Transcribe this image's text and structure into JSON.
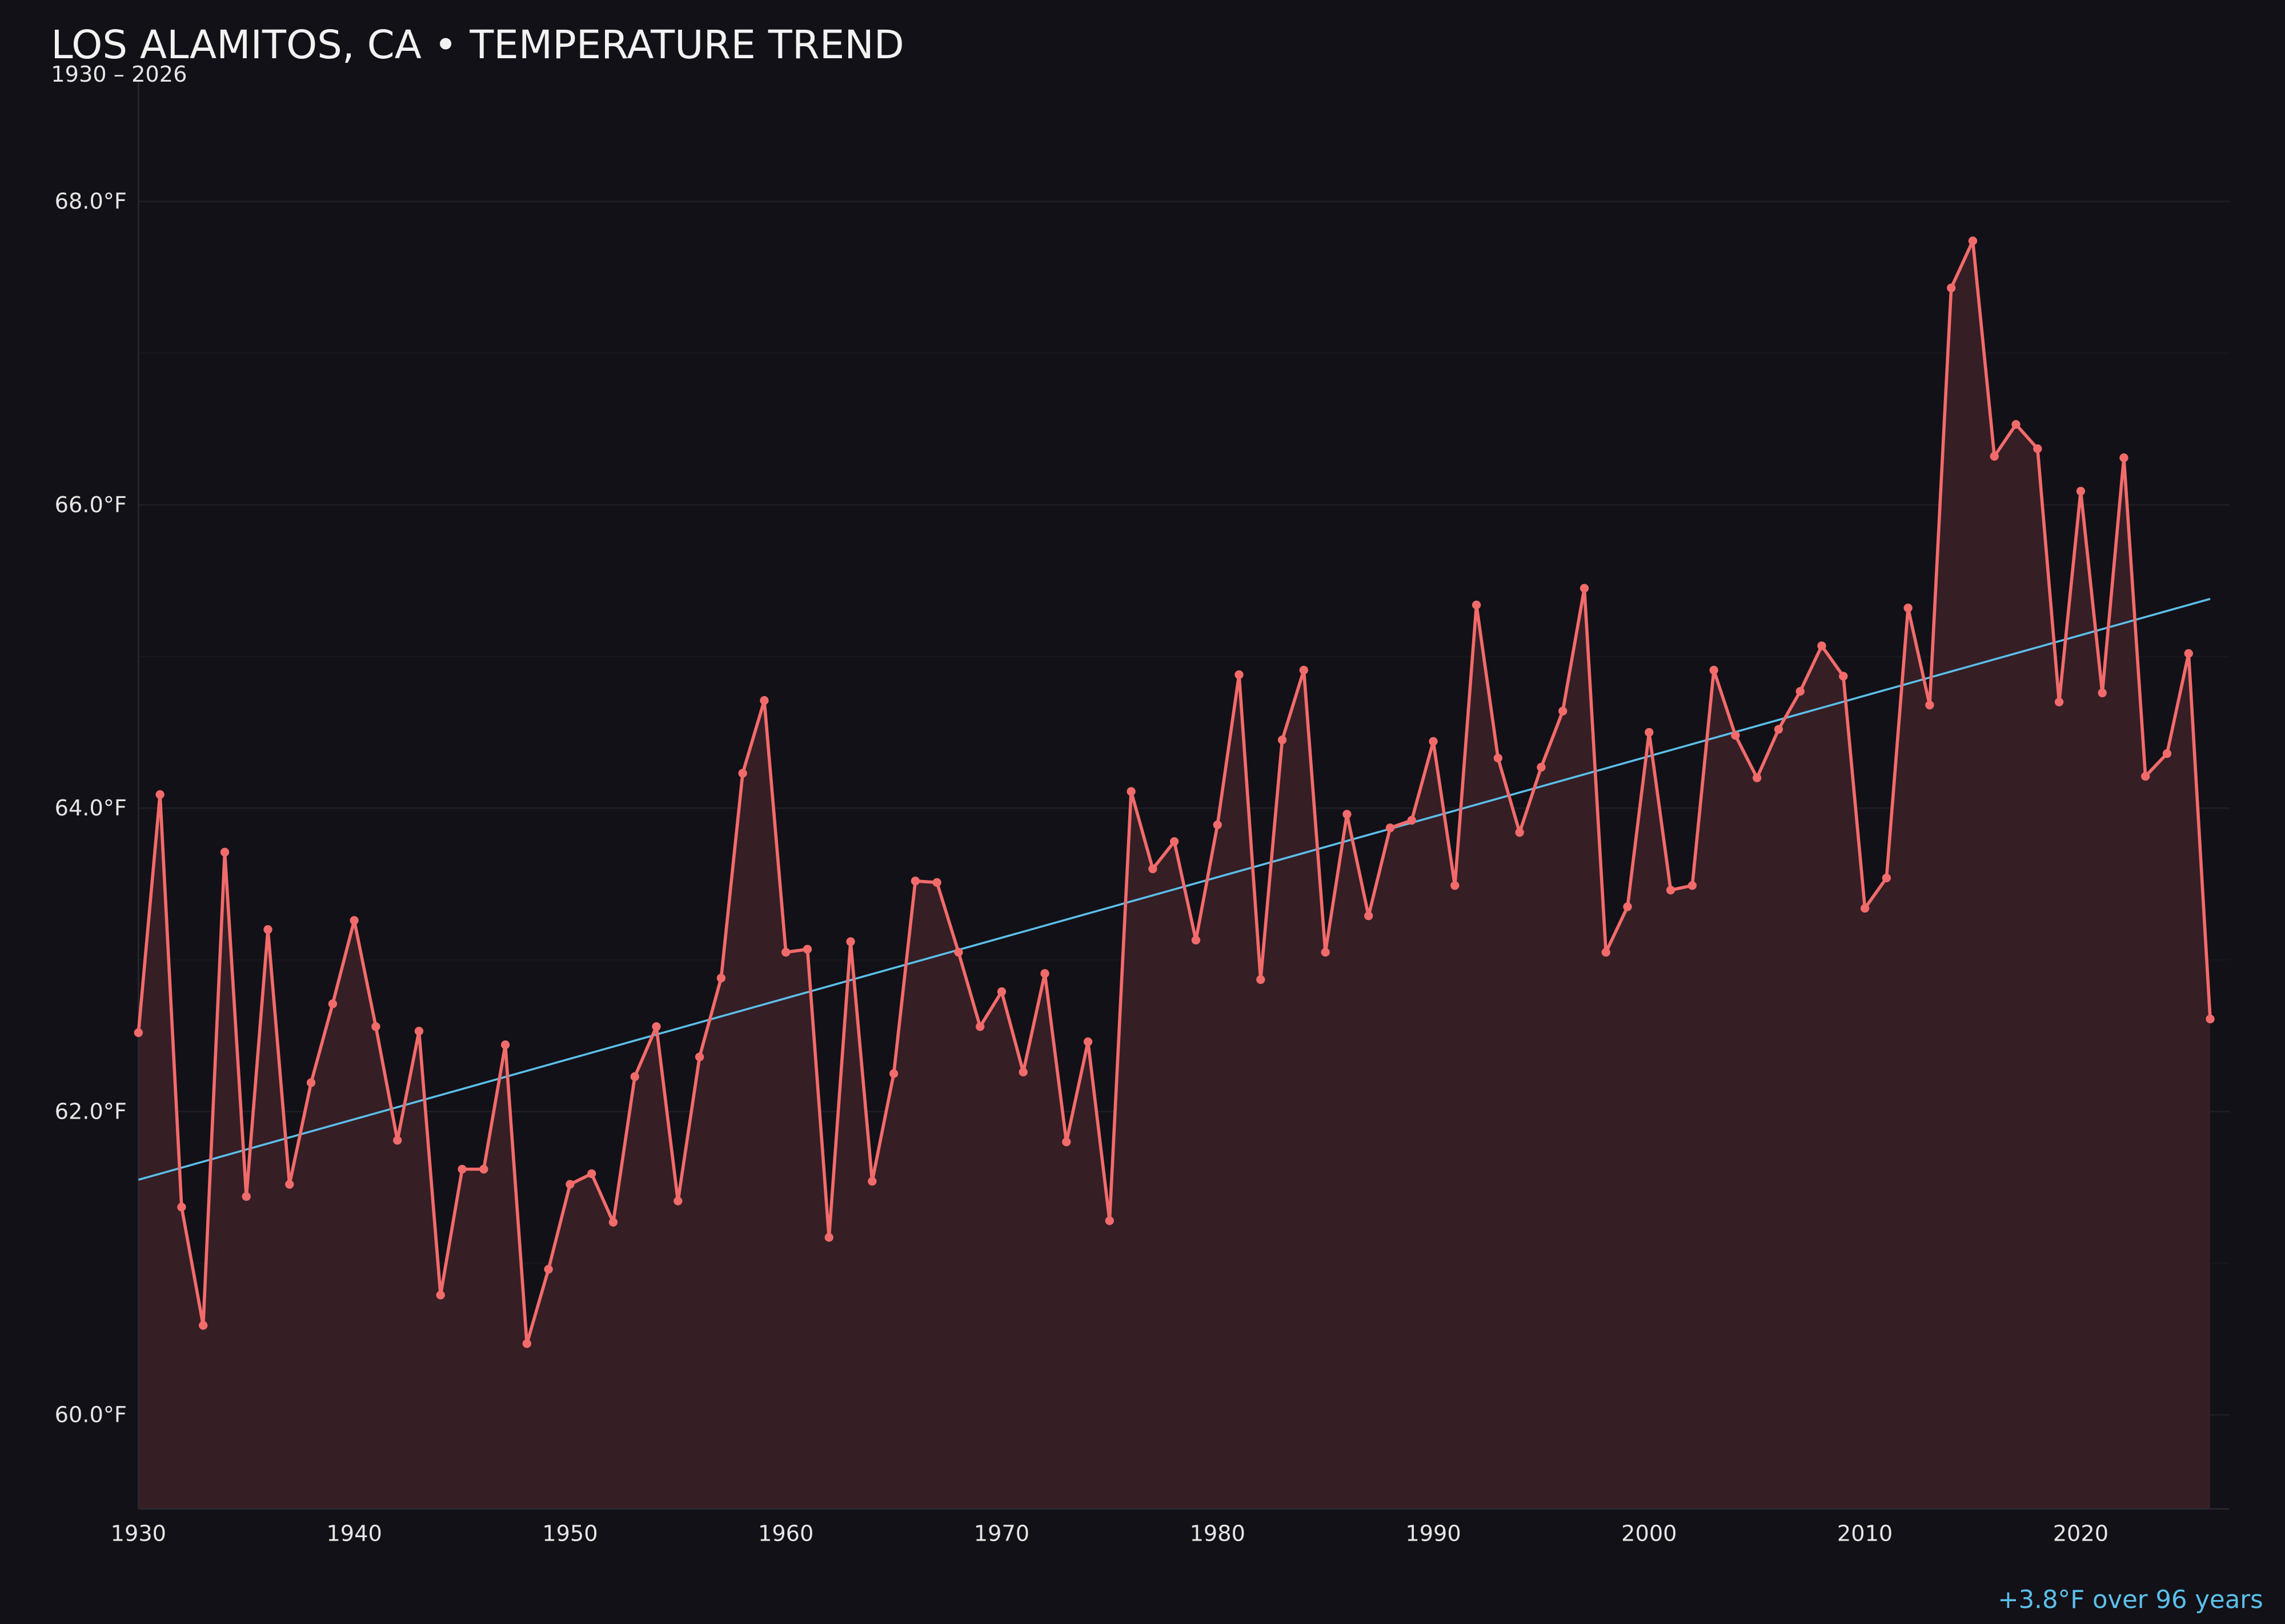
{
  "chart_data": {
    "type": "line",
    "title": "LOS ALAMITOS, CA • TEMPERATURE TREND",
    "subtitle": "1930 – 2026",
    "annotation": "+3.8°F over 96 years",
    "xlabel": "",
    "ylabel": "",
    "xlim": [
      1930,
      2026.9
    ],
    "ylim": [
      59.38,
      68.8
    ],
    "grid": true,
    "x_ticks": [
      1930,
      1940,
      1950,
      1960,
      1970,
      1980,
      1990,
      2000,
      2010,
      2020
    ],
    "x_tick_labels": [
      "1930",
      "1940",
      "1950",
      "1960",
      "1970",
      "1980",
      "1990",
      "2000",
      "2010",
      "2020"
    ],
    "y_ticks": [
      60,
      62,
      64,
      66,
      68
    ],
    "y_tick_labels": [
      "60.0°F",
      "62.0°F",
      "64.0°F",
      "66.0°F",
      "68.0°F"
    ],
    "y_minor_grid": [
      61,
      63,
      65,
      67
    ],
    "colors": {
      "background": "#121117",
      "series": "#f26b6b",
      "fill": "#361e25",
      "trend": "#5bc0eb",
      "grid": "#1f1e24"
    },
    "series": [
      {
        "x": [
          1930,
          1931,
          1932,
          1933,
          1934,
          1935,
          1936,
          1937,
          1938,
          1939,
          1940,
          1941,
          1942,
          1943,
          1944,
          1945,
          1946,
          1947,
          1948,
          1949,
          1950,
          1951,
          1952,
          1953,
          1954,
          1955,
          1956,
          1957,
          1958,
          1959,
          1960,
          1961,
          1962,
          1963,
          1964,
          1965,
          1966,
          1967,
          1968,
          1969,
          1970,
          1971,
          1972,
          1973,
          1974,
          1975,
          1976,
          1977,
          1978,
          1979,
          1980,
          1981,
          1982,
          1983,
          1984,
          1985,
          1986,
          1987,
          1988,
          1989,
          1990,
          1991,
          1992,
          1993,
          1994,
          1995,
          1996,
          1997,
          1998,
          1999,
          2000,
          2001,
          2002,
          2003,
          2004,
          2005,
          2006,
          2007,
          2008,
          2009,
          2010,
          2011,
          2012,
          2013,
          2014,
          2015,
          2016,
          2017,
          2018,
          2019,
          2020,
          2021,
          2022,
          2023,
          2024,
          2025,
          2026
        ],
        "values": [
          62.52,
          64.09,
          61.37,
          60.59,
          63.71,
          61.44,
          63.2,
          61.52,
          62.19,
          62.71,
          63.26,
          62.56,
          61.81,
          62.53,
          60.79,
          61.62,
          61.62,
          62.44,
          60.47,
          60.96,
          61.52,
          61.59,
          61.27,
          62.23,
          62.56,
          61.41,
          62.36,
          62.88,
          64.23,
          64.71,
          63.05,
          63.07,
          61.17,
          63.12,
          61.54,
          62.25,
          63.52,
          63.51,
          63.05,
          62.56,
          62.79,
          62.26,
          62.91,
          61.8,
          62.46,
          61.28,
          64.11,
          63.6,
          63.78,
          63.13,
          63.89,
          64.88,
          62.87,
          64.45,
          64.91,
          63.05,
          63.96,
          63.29,
          63.87,
          63.92,
          64.44,
          63.49,
          65.34,
          64.33,
          63.84,
          64.27,
          64.64,
          65.45,
          63.05,
          63.35,
          64.5,
          63.46,
          63.49,
          64.91,
          64.48,
          64.2,
          64.52,
          64.77,
          65.07,
          64.87,
          63.34,
          63.54,
          65.32,
          64.68,
          67.43,
          67.74,
          66.32,
          66.53,
          66.37,
          64.7,
          66.09,
          64.76,
          66.31,
          64.21,
          64.36,
          65.02,
          62.61
        ]
      }
    ],
    "trend": {
      "x": [
        1930,
        2026
      ],
      "values": [
        61.55,
        65.38
      ]
    }
  }
}
